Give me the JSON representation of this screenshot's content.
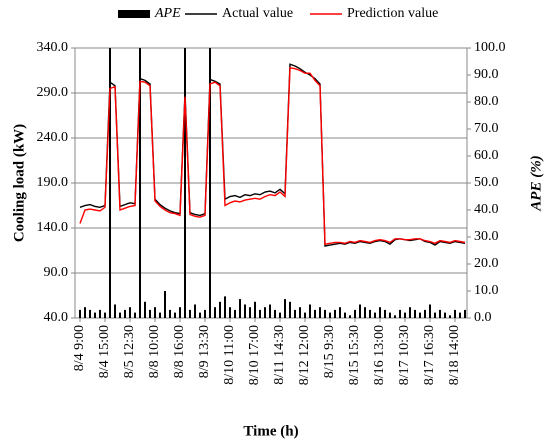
{
  "chart_data": {
    "type": "line",
    "legend_position": "top",
    "grid": true,
    "x_label": "Time (h)",
    "y_label": "Cooling load (kW)",
    "y2_label": "APE (%)",
    "categories": [
      "8/4 9:00",
      null,
      null,
      null,
      null,
      "8/4 15:00",
      null,
      null,
      null,
      null,
      "8/5 12:30",
      null,
      null,
      null,
      null,
      "8/8 10:00",
      null,
      null,
      null,
      null,
      "8/8 16:00",
      null,
      null,
      null,
      null,
      "8/9 13:30",
      null,
      null,
      null,
      null,
      "8/10 11:00",
      null,
      null,
      null,
      null,
      "8/10 17:00",
      null,
      null,
      null,
      null,
      "8/11 14:30",
      null,
      null,
      null,
      null,
      "8/12 12:00",
      null,
      null,
      null,
      null,
      "8/15 9:30",
      null,
      null,
      null,
      null,
      "8/15 15:30",
      null,
      null,
      null,
      null,
      "8/16 13:00",
      null,
      null,
      null,
      null,
      "8/17 10:30",
      null,
      null,
      null,
      null,
      "8/17 16:30",
      null,
      null,
      null,
      null,
      "8/18 14:00",
      null,
      null
    ],
    "series": [
      {
        "name": "APE",
        "type": "bar",
        "axis": "y2",
        "color": "#000000",
        "values": [
          3,
          4,
          3,
          2,
          3,
          2,
          100,
          5,
          2,
          3,
          4,
          2,
          100,
          6,
          3,
          4,
          2,
          10,
          3,
          2,
          4,
          100,
          3,
          5,
          2,
          3,
          100,
          4,
          6,
          8,
          4,
          3,
          7,
          5,
          4,
          6,
          3,
          4,
          5,
          3,
          2,
          7,
          6,
          3,
          4,
          2,
          5,
          3,
          4,
          3,
          2,
          3,
          4,
          2,
          1,
          3,
          5,
          4,
          3,
          2,
          4,
          3,
          2,
          1,
          3,
          2,
          4,
          3,
          2,
          3,
          5,
          2,
          3,
          2,
          1,
          3,
          2,
          3
        ]
      },
      {
        "name": "Actual value",
        "type": "line",
        "color": "#000000",
        "values": [
          163,
          165,
          166,
          164,
          163,
          165,
          302,
          298,
          164,
          166,
          168,
          167,
          306,
          304,
          300,
          172,
          166,
          162,
          159,
          157,
          156,
          290,
          157,
          155,
          154,
          156,
          305,
          303,
          300,
          172,
          175,
          176,
          174,
          177,
          176,
          178,
          177,
          180,
          181,
          179,
          183,
          178,
          322,
          320,
          317,
          313,
          310,
          306,
          300,
          120,
          121,
          122,
          123,
          122,
          124,
          123,
          125,
          124,
          123,
          125,
          126,
          125,
          122,
          127,
          128,
          127,
          126,
          127,
          128,
          125,
          124,
          121,
          125,
          124,
          123,
          125,
          124,
          123
        ]
      },
      {
        "name": "Prediction value",
        "type": "line",
        "color": "#ff0000",
        "values": [
          145,
          160,
          161,
          160,
          159,
          163,
          295,
          297,
          160,
          162,
          164,
          165,
          303,
          302,
          298,
          170,
          164,
          160,
          157,
          156,
          154,
          286,
          155,
          153,
          152,
          154,
          300,
          302,
          298,
          165,
          168,
          170,
          169,
          171,
          172,
          173,
          172,
          175,
          177,
          176,
          180,
          175,
          318,
          317,
          315,
          312,
          312,
          304,
          298,
          122,
          123,
          124,
          124,
          123,
          125,
          124,
          126,
          125,
          124,
          126,
          127,
          126,
          124,
          128,
          128,
          127,
          127,
          128,
          128,
          126,
          125,
          123,
          126,
          125,
          124,
          126,
          125,
          124
        ]
      }
    ],
    "ylim": [
      40,
      340
    ],
    "yticks": [
      {
        "value": 40,
        "label": "40.0"
      },
      {
        "value": 90,
        "label": "90.0"
      },
      {
        "value": 140,
        "label": "140.0"
      },
      {
        "value": 190,
        "label": "190.0"
      },
      {
        "value": 240,
        "label": "240.0"
      },
      {
        "value": 290,
        "label": "290.0"
      },
      {
        "value": 340,
        "label": "340.0"
      }
    ],
    "y2lim": [
      0,
      100
    ],
    "y2ticks": [
      {
        "value": 0,
        "label": "0.0"
      },
      {
        "value": 10,
        "label": "10.0"
      },
      {
        "value": 20,
        "label": "20.0"
      },
      {
        "value": 30,
        "label": "30.0"
      },
      {
        "value": 40,
        "label": "40.0"
      },
      {
        "value": 50,
        "label": "50.0"
      },
      {
        "value": 60,
        "label": "60.0"
      },
      {
        "value": 70,
        "label": "70.0"
      },
      {
        "value": 80,
        "label": "80.0"
      },
      {
        "value": 90,
        "label": "90.0"
      },
      {
        "value": 100,
        "label": "100.0"
      }
    ]
  }
}
